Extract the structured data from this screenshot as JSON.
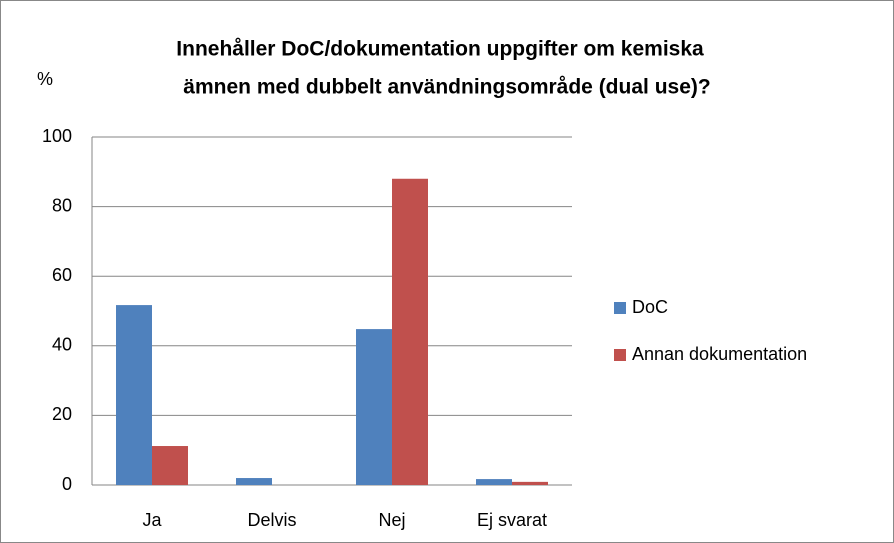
{
  "chart_data": {
    "type": "bar",
    "title": [
      "Innehåller DoC/dokumentation uppgifter om kemiska",
      "ämnen med dubbelt användningsområde  (dual use)?"
    ],
    "y_label": "%",
    "categories": [
      "Ja",
      "Delvis",
      "Nej",
      "Ej svarat"
    ],
    "series": [
      {
        "name": "DoC",
        "color": "#4f81bd",
        "values": [
          51.7,
          2,
          44.8,
          1.7
        ]
      },
      {
        "name": "Annan dokumentation",
        "color": "#c0504d",
        "values": [
          11.2,
          0,
          88,
          0.9
        ]
      }
    ],
    "ylim": [
      0,
      100
    ],
    "yticks": [
      0,
      20,
      40,
      60,
      80,
      100
    ],
    "grid": true,
    "legend": "right"
  }
}
